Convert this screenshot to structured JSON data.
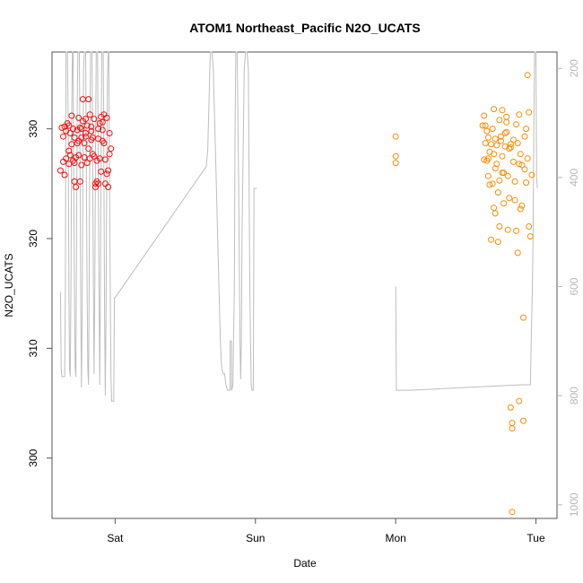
{
  "chart_data": {
    "type": "scatter",
    "title": "ATOM1 Northeast_Pacific N2O_UCATS",
    "xlabel": "Date",
    "ylabel": "N2O_UCATS",
    "x_ticks": [
      "Sat",
      "Sun",
      "Mon",
      "Tue"
    ],
    "y_ticks": [
      300,
      310,
      320,
      330
    ],
    "y_right_ticks": [
      200,
      400,
      600,
      800,
      1000
    ],
    "ylim": [
      294.5,
      337.0
    ],
    "y_right_lim": [
      1025,
      170
    ],
    "xlim_days": [
      -0.45,
      3.15
    ],
    "colors": {
      "series1": "#ee1111",
      "series2": "#ff8c00",
      "pressure": "#bdbdbd",
      "axis": "#555555"
    },
    "series": [
      {
        "color": "#ee1111",
        "points": [
          [
            -0.39,
            326.2
          ],
          [
            -0.38,
            330.1
          ],
          [
            -0.37,
            327.0
          ],
          [
            -0.37,
            329.3
          ],
          [
            -0.36,
            330.2
          ],
          [
            -0.36,
            325.8
          ],
          [
            -0.35,
            327.3
          ],
          [
            -0.35,
            329.8
          ],
          [
            -0.34,
            330.5
          ],
          [
            -0.33,
            326.8
          ],
          [
            -0.33,
            328.0
          ],
          [
            -0.32,
            327.6
          ],
          [
            -0.32,
            329.6
          ],
          [
            -0.31,
            331.2
          ],
          [
            -0.31,
            328.6
          ],
          [
            -0.3,
            327.1
          ],
          [
            -0.3,
            330.0
          ],
          [
            -0.29,
            325.2
          ],
          [
            -0.29,
            326.9
          ],
          [
            -0.28,
            324.7
          ],
          [
            -0.28,
            327.4
          ],
          [
            -0.27,
            328.7
          ],
          [
            -0.27,
            329.9
          ],
          [
            -0.26,
            328.9
          ],
          [
            -0.26,
            327.6
          ],
          [
            -0.25,
            330.1
          ],
          [
            -0.25,
            325.2
          ],
          [
            -0.24,
            326.7
          ],
          [
            -0.24,
            329.2
          ],
          [
            -0.23,
            330.7
          ],
          [
            -0.23,
            332.7
          ],
          [
            -0.22,
            327.4
          ],
          [
            -0.22,
            328.7
          ],
          [
            -0.21,
            330.9
          ],
          [
            -0.21,
            329.3
          ],
          [
            -0.2,
            326.9
          ],
          [
            -0.2,
            330.3
          ],
          [
            -0.19,
            328.2
          ],
          [
            -0.19,
            332.7
          ],
          [
            -0.18,
            331.3
          ],
          [
            -0.18,
            327.3
          ],
          [
            -0.17,
            329.0
          ],
          [
            -0.17,
            330.2
          ],
          [
            -0.16,
            327.7
          ],
          [
            -0.16,
            329.2
          ],
          [
            -0.15,
            330.9
          ],
          [
            -0.14,
            325.0
          ],
          [
            -0.14,
            324.7
          ],
          [
            -0.13,
            327.1
          ],
          [
            -0.13,
            325.2
          ],
          [
            -0.12,
            329.1
          ],
          [
            -0.12,
            330.0
          ],
          [
            -0.11,
            330.5
          ],
          [
            -0.11,
            327.3
          ],
          [
            -0.1,
            326.1
          ],
          [
            -0.1,
            331.1
          ],
          [
            -0.09,
            330.6
          ],
          [
            -0.09,
            329.9
          ],
          [
            -0.08,
            328.7
          ],
          [
            -0.08,
            331.3
          ],
          [
            -0.07,
            327.2
          ],
          [
            -0.07,
            325.0
          ],
          [
            -0.06,
            325.9
          ],
          [
            -0.06,
            331.0
          ],
          [
            -0.05,
            324.7
          ],
          [
            -0.05,
            326.2
          ],
          [
            -0.04,
            329.6
          ],
          [
            -0.04,
            327.7
          ],
          [
            -0.03,
            328.2
          ],
          [
            -0.12,
            325.0
          ],
          [
            -0.26,
            331.0
          ],
          [
            -0.21,
            329.6
          ],
          [
            -0.17,
            329.8
          ],
          [
            -0.09,
            328.9
          ],
          [
            -0.33,
            330.3
          ],
          [
            -0.29,
            329.2
          ],
          [
            -0.15,
            327.5
          ],
          [
            -0.24,
            330.0
          ]
        ]
      },
      {
        "color": "#ff8c00",
        "points": [
          [
            0.0,
            329.3
          ],
          [
            0.0,
            327.5
          ],
          [
            0.0,
            326.9
          ],
          [
            0.62,
            330.3
          ],
          [
            0.63,
            331.2
          ],
          [
            0.63,
            327.2
          ],
          [
            0.64,
            330.3
          ],
          [
            0.64,
            328.7
          ],
          [
            0.65,
            327.1
          ],
          [
            0.65,
            329.8
          ],
          [
            0.66,
            327.3
          ],
          [
            0.66,
            329.2
          ],
          [
            0.67,
            324.9
          ],
          [
            0.67,
            327.9
          ],
          [
            0.68,
            328.6
          ],
          [
            0.68,
            319.9
          ],
          [
            0.69,
            325.0
          ],
          [
            0.69,
            330.0
          ],
          [
            0.7,
            327.7
          ],
          [
            0.7,
            322.8
          ],
          [
            0.71,
            326.4
          ],
          [
            0.71,
            329.1
          ],
          [
            0.72,
            328.5
          ],
          [
            0.72,
            326.8
          ],
          [
            0.73,
            324.2
          ],
          [
            0.73,
            319.7
          ],
          [
            0.74,
            321.1
          ],
          [
            0.74,
            325.3
          ],
          [
            0.75,
            328.9
          ],
          [
            0.75,
            329.3
          ],
          [
            0.76,
            331.7
          ],
          [
            0.76,
            327.5
          ],
          [
            0.77,
            323.2
          ],
          [
            0.77,
            326.0
          ],
          [
            0.78,
            329.6
          ],
          [
            0.78,
            328.4
          ],
          [
            0.79,
            331.1
          ],
          [
            0.79,
            330.6
          ],
          [
            0.8,
            325.7
          ],
          [
            0.8,
            320.8
          ],
          [
            0.81,
            323.7
          ],
          [
            0.81,
            328.2
          ],
          [
            0.82,
            328.6
          ],
          [
            0.82,
            304.6
          ],
          [
            0.83,
            303.2
          ],
          [
            0.83,
            295.1
          ],
          [
            0.84,
            329.0
          ],
          [
            0.84,
            327.0
          ],
          [
            0.85,
            325.2
          ],
          [
            0.85,
            323.5
          ],
          [
            0.86,
            330.4
          ],
          [
            0.86,
            320.7
          ],
          [
            0.87,
            318.7
          ],
          [
            0.87,
            328.7
          ],
          [
            0.88,
            326.8
          ],
          [
            0.88,
            331.3
          ],
          [
            0.89,
            327.7
          ],
          [
            0.89,
            322.7
          ],
          [
            0.9,
            326.7
          ],
          [
            0.9,
            323.0
          ],
          [
            0.91,
            312.8
          ],
          [
            0.91,
            303.4
          ],
          [
            0.92,
            329.3
          ],
          [
            0.92,
            326.3
          ],
          [
            0.93,
            325.1
          ],
          [
            0.93,
            330.0
          ],
          [
            0.94,
            327.3
          ],
          [
            0.94,
            334.9
          ],
          [
            0.95,
            331.5
          ],
          [
            0.95,
            321.1
          ],
          [
            0.96,
            320.2
          ],
          [
            0.97,
            325.8
          ],
          [
            0.7,
            331.8
          ],
          [
            0.83,
            302.7
          ],
          [
            0.88,
            305.2
          ],
          [
            0.82,
            328.3
          ],
          [
            0.76,
            326.0
          ],
          [
            0.71,
            322.3
          ],
          [
            0.74,
            330.8
          ],
          [
            0.79,
            329.7
          ],
          [
            0.66,
            325.7
          ]
        ]
      }
    ],
    "pressure_profile": [
      [
        -0.39,
        610
      ],
      [
        -0.385,
        750
      ],
      [
        -0.38,
        765
      ],
      [
        -0.36,
        765
      ],
      [
        -0.355,
        600
      ],
      [
        -0.35,
        170
      ],
      [
        -0.34,
        170
      ],
      [
        -0.335,
        300
      ],
      [
        -0.33,
        600
      ],
      [
        -0.325,
        750
      ],
      [
        -0.32,
        765
      ],
      [
        -0.315,
        600
      ],
      [
        -0.31,
        300
      ],
      [
        -0.305,
        170
      ],
      [
        -0.3,
        170
      ],
      [
        -0.295,
        400
      ],
      [
        -0.29,
        600
      ],
      [
        -0.285,
        750
      ],
      [
        -0.28,
        765
      ],
      [
        -0.275,
        500
      ],
      [
        -0.27,
        250
      ],
      [
        -0.265,
        170
      ],
      [
        -0.255,
        170
      ],
      [
        -0.25,
        400
      ],
      [
        -0.245,
        650
      ],
      [
        -0.24,
        785
      ],
      [
        -0.235,
        650
      ],
      [
        -0.23,
        400
      ],
      [
        -0.225,
        200
      ],
      [
        -0.22,
        170
      ],
      [
        -0.21,
        170
      ],
      [
        -0.205,
        400
      ],
      [
        -0.2,
        600
      ],
      [
        -0.195,
        750
      ],
      [
        -0.19,
        780
      ],
      [
        -0.185,
        600
      ],
      [
        -0.18,
        300
      ],
      [
        -0.175,
        170
      ],
      [
        -0.165,
        170
      ],
      [
        -0.16,
        400
      ],
      [
        -0.155,
        600
      ],
      [
        -0.15,
        760
      ],
      [
        -0.145,
        600
      ],
      [
        -0.14,
        350
      ],
      [
        -0.135,
        170
      ],
      [
        -0.125,
        170
      ],
      [
        -0.12,
        400
      ],
      [
        -0.115,
        600
      ],
      [
        -0.11,
        780
      ],
      [
        -0.105,
        600
      ],
      [
        -0.1,
        350
      ],
      [
        -0.095,
        170
      ],
      [
        -0.085,
        170
      ],
      [
        -0.08,
        400
      ],
      [
        -0.075,
        650
      ],
      [
        -0.07,
        800
      ],
      [
        -0.065,
        650
      ],
      [
        -0.06,
        400
      ],
      [
        -0.055,
        220
      ],
      [
        -0.05,
        170
      ],
      [
        -0.045,
        170
      ],
      [
        -0.04,
        400
      ],
      [
        -0.035,
        600
      ],
      [
        -0.03,
        765
      ],
      [
        -0.025,
        810
      ],
      [
        -0.02,
        810
      ],
      [
        -0.01,
        810
      ],
      [
        -0.005,
        620
      ],
      [
        0.0,
        620
      ],
      [
        0.65,
        380
      ],
      [
        0.66,
        350
      ],
      [
        0.665,
        300
      ],
      [
        0.67,
        250
      ],
      [
        0.675,
        200
      ],
      [
        0.68,
        170
      ],
      [
        0.69,
        170
      ],
      [
        0.7,
        200
      ],
      [
        0.71,
        300
      ],
      [
        0.72,
        400
      ],
      [
        0.73,
        500
      ],
      [
        0.74,
        600
      ],
      [
        0.75,
        700
      ],
      [
        0.76,
        750
      ],
      [
        0.77,
        760
      ],
      [
        0.78,
        760
      ],
      [
        0.79,
        780
      ],
      [
        0.8,
        790
      ],
      [
        0.81,
        790
      ],
      [
        0.82,
        790
      ],
      [
        0.82,
        700
      ],
      [
        0.83,
        700
      ],
      [
        0.83,
        790
      ],
      [
        0.84,
        780
      ],
      [
        0.85,
        600
      ],
      [
        0.855,
        300
      ],
      [
        0.86,
        170
      ],
      [
        0.87,
        170
      ],
      [
        0.88,
        400
      ],
      [
        0.89,
        700
      ],
      [
        0.895,
        770
      ],
      [
        0.9,
        700
      ],
      [
        0.905,
        500
      ],
      [
        0.91,
        400
      ],
      [
        0.915,
        300
      ],
      [
        0.92,
        200
      ],
      [
        0.93,
        170
      ],
      [
        0.94,
        170
      ],
      [
        0.95,
        200
      ],
      [
        0.955,
        400
      ],
      [
        0.96,
        600
      ],
      [
        0.965,
        700
      ],
      [
        0.97,
        780
      ],
      [
        0.975,
        790
      ],
      [
        0.98,
        790
      ],
      [
        0.985,
        790
      ],
      [
        0.99,
        420
      ],
      [
        1.0,
        420
      ],
      [
        1.01,
        420
      ]
    ],
    "pressure_profile_b": [
      [
        2.0,
        600
      ],
      [
        2.005,
        790
      ],
      [
        2.1,
        790
      ],
      [
        2.5,
        785
      ],
      [
        2.9,
        780
      ],
      [
        2.96,
        780
      ],
      [
        2.97,
        650
      ],
      [
        2.975,
        600
      ],
      [
        2.98,
        500
      ],
      [
        2.985,
        300
      ],
      [
        2.99,
        170
      ],
      [
        3.0,
        170
      ],
      [
        3.005,
        400
      ],
      [
        3.01,
        420
      ]
    ]
  }
}
